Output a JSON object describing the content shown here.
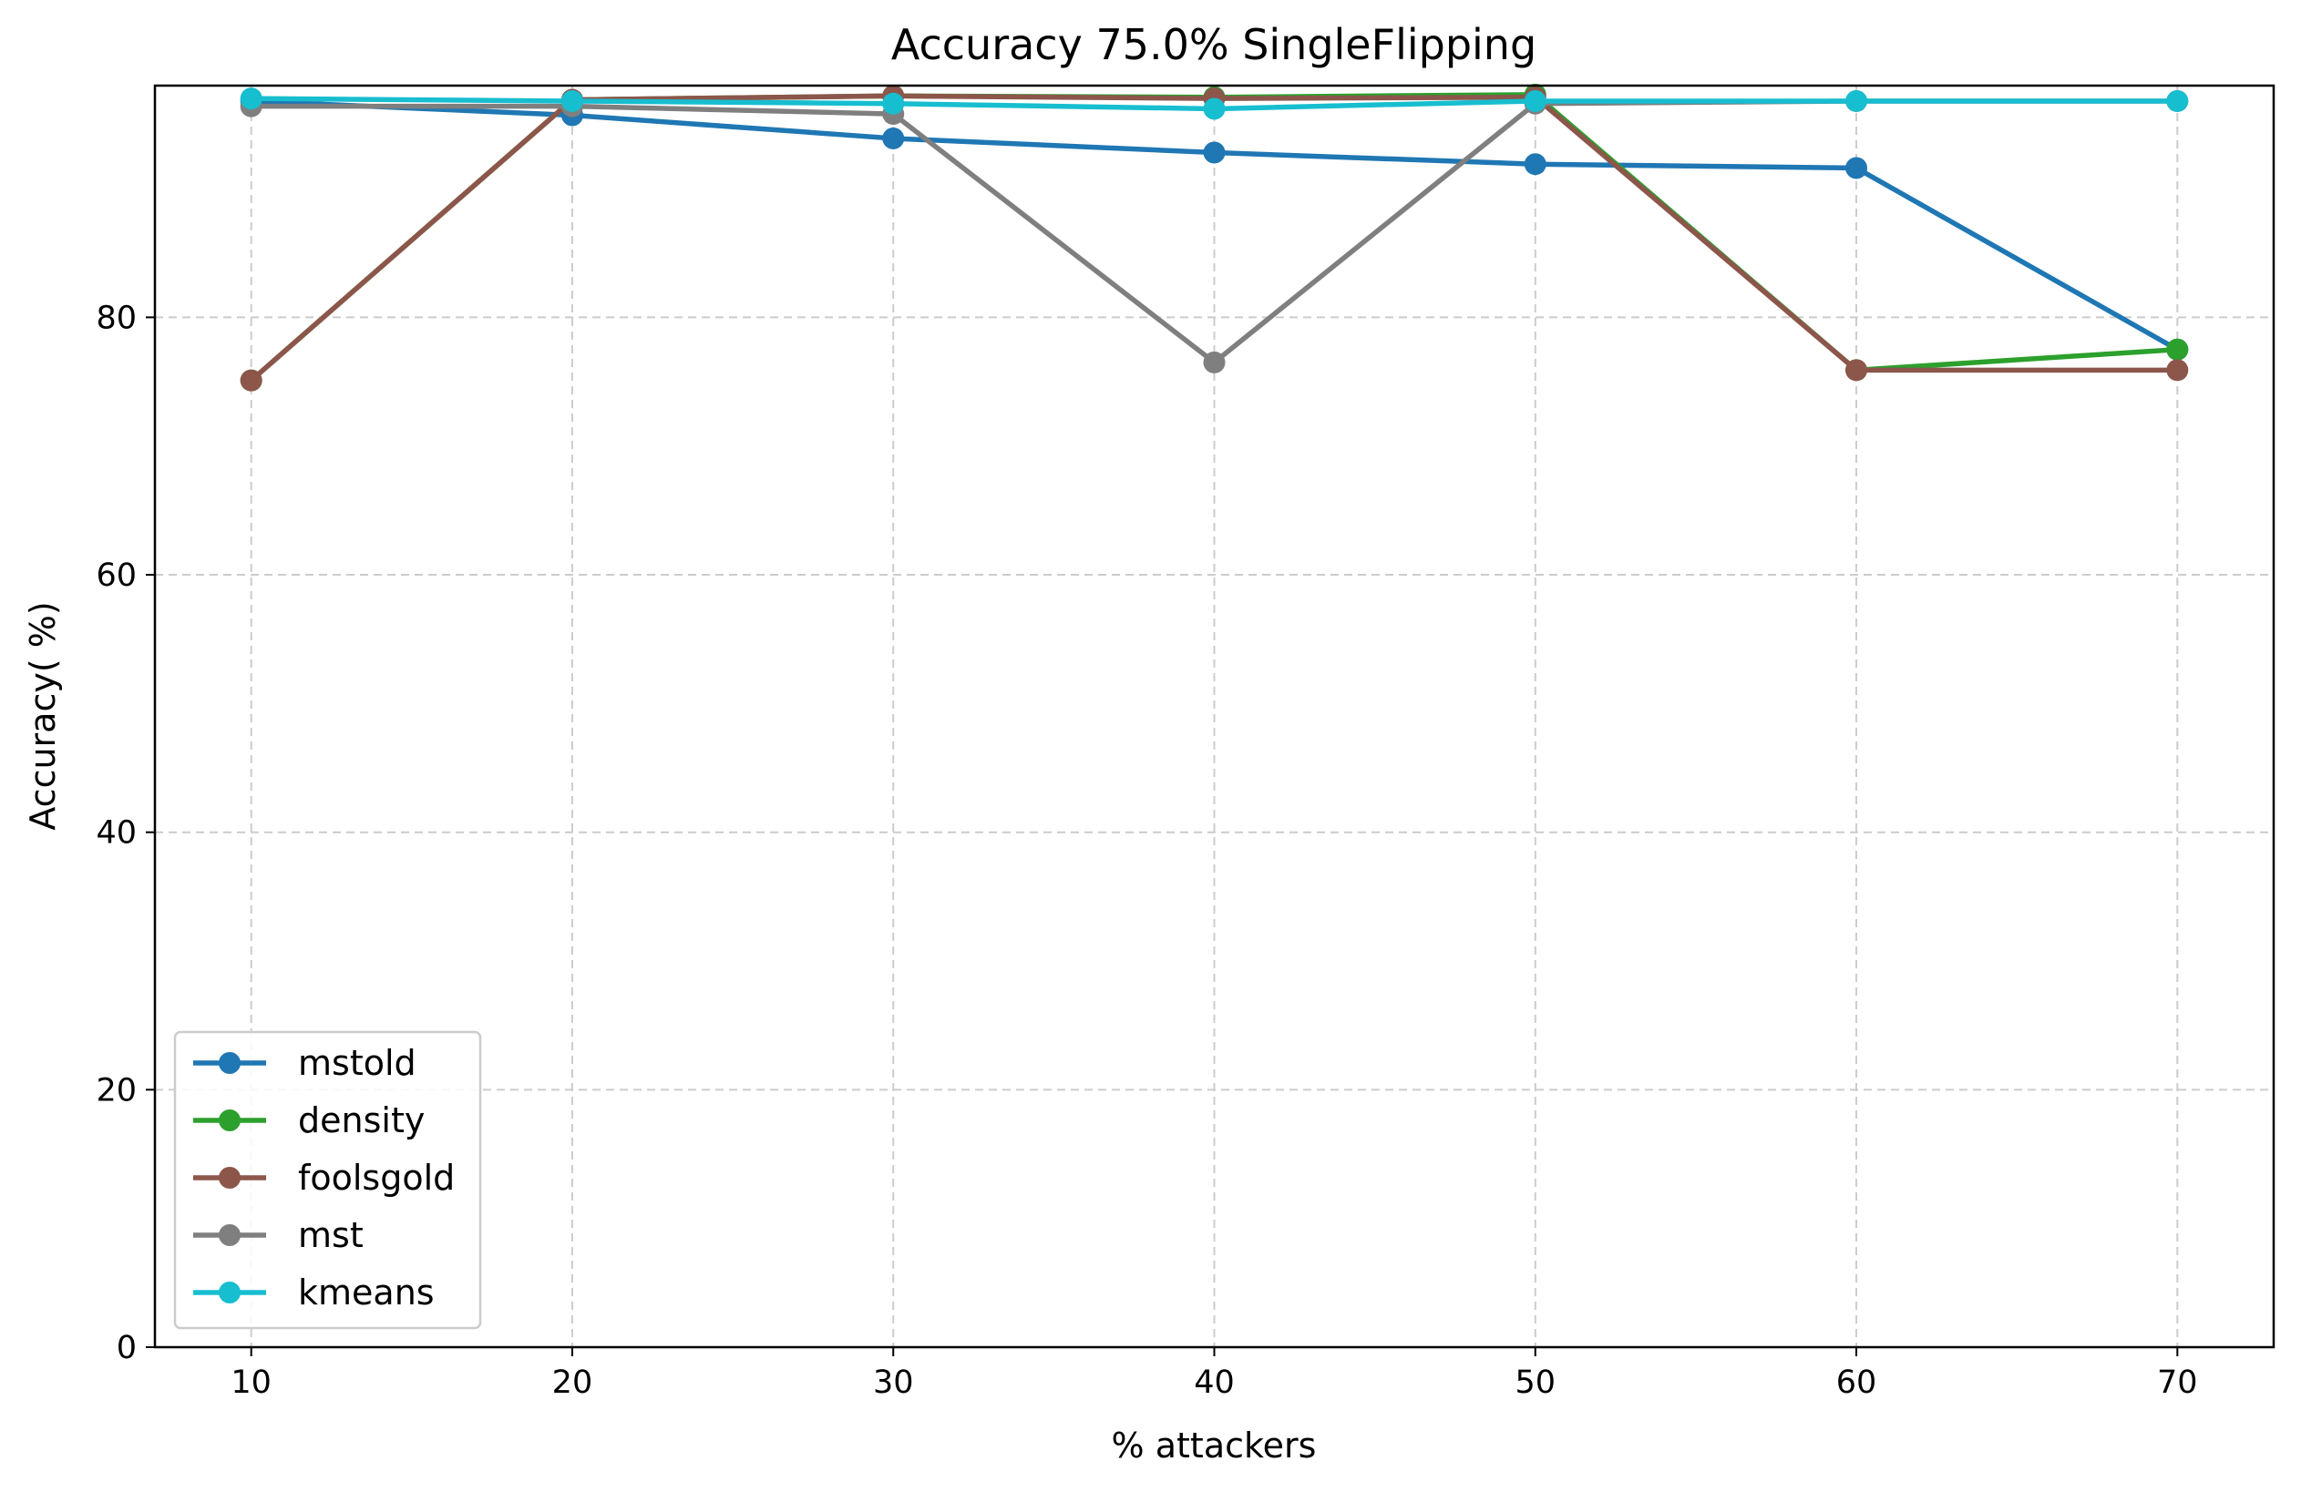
{
  "chart_data": {
    "type": "line",
    "title": "Accuracy 75.0% SingleFlipping",
    "xlabel": "% attackers",
    "ylabel": "Accuracy( %)",
    "x": [
      10,
      20,
      30,
      40,
      50,
      60,
      70
    ],
    "xlim": [
      7,
      73
    ],
    "ylim": [
      0,
      98
    ],
    "xticks": [
      10,
      20,
      30,
      40,
      50,
      60,
      70
    ],
    "yticks": [
      0,
      20,
      40,
      60,
      80
    ],
    "grid": true,
    "legend_position": "lower-left",
    "series": [
      {
        "name": "mstold",
        "color": "#1f77b4",
        "values": [
          96.8,
          95.7,
          93.9,
          92.8,
          91.9,
          91.6,
          77.5
        ]
      },
      {
        "name": "density",
        "color": "#2ca02c",
        "values": [
          75.1,
          96.9,
          97.2,
          97.1,
          97.3,
          75.9,
          77.5
        ]
      },
      {
        "name": "foolsgold",
        "color": "#8c564b",
        "values": [
          75.1,
          96.9,
          97.2,
          97.0,
          97.1,
          75.9,
          75.9
        ]
      },
      {
        "name": "mst",
        "color": "#7f7f7f",
        "values": [
          96.4,
          96.4,
          95.8,
          76.5,
          96.6,
          96.8,
          96.8
        ]
      },
      {
        "name": "kmeans",
        "color": "#17becf",
        "values": [
          97.0,
          96.8,
          96.6,
          96.2,
          96.8,
          96.8,
          96.8
        ]
      }
    ]
  }
}
